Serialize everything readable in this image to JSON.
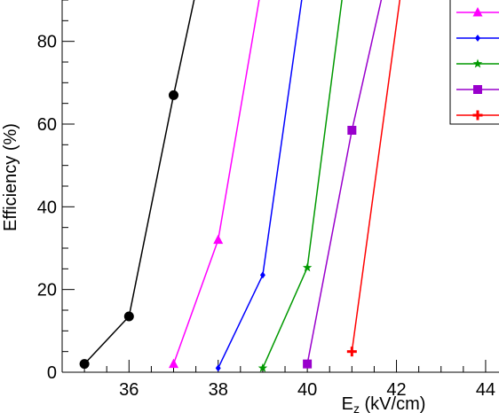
{
  "chart_data": {
    "type": "line",
    "xlabel": "E",
    "xlabel_sub": "z",
    "xlabel_unit": " (kV/cm)",
    "ylabel": "Efficiency (%)",
    "xlim": [
      34.5,
      44.3
    ],
    "ylim": [
      0,
      90
    ],
    "x_ticks": [
      36,
      38,
      40,
      42,
      44
    ],
    "y_ticks": [
      0,
      20,
      40,
      60,
      80
    ],
    "grid": false,
    "legend": "top-right (cropped, labels not visible)",
    "series": [
      {
        "color": "#000000",
        "marker": "circle",
        "points": [
          [
            35,
            2
          ],
          [
            36,
            13.5
          ],
          [
            37,
            67
          ],
          [
            37.5,
            92
          ]
        ]
      },
      {
        "color": "#ff00ff",
        "marker": "triangle",
        "points": [
          [
            37,
            2
          ],
          [
            38,
            32
          ],
          [
            38.95,
            92
          ]
        ]
      },
      {
        "color": "#0000ff",
        "marker": "diamond",
        "points": [
          [
            38,
            1
          ],
          [
            39,
            23.5
          ],
          [
            39.9,
            92
          ]
        ]
      },
      {
        "color": "#009900",
        "marker": "star",
        "points": [
          [
            39,
            1
          ],
          [
            40,
            25.3
          ],
          [
            40.8,
            92
          ]
        ]
      },
      {
        "color": "#9900cc",
        "marker": "square",
        "points": [
          [
            40,
            2
          ],
          [
            41,
            58.5
          ],
          [
            41.7,
            92
          ]
        ]
      },
      {
        "color": "#ff0000",
        "marker": "cross",
        "points": [
          [
            41,
            5
          ],
          [
            42.1,
            92
          ]
        ]
      }
    ]
  }
}
